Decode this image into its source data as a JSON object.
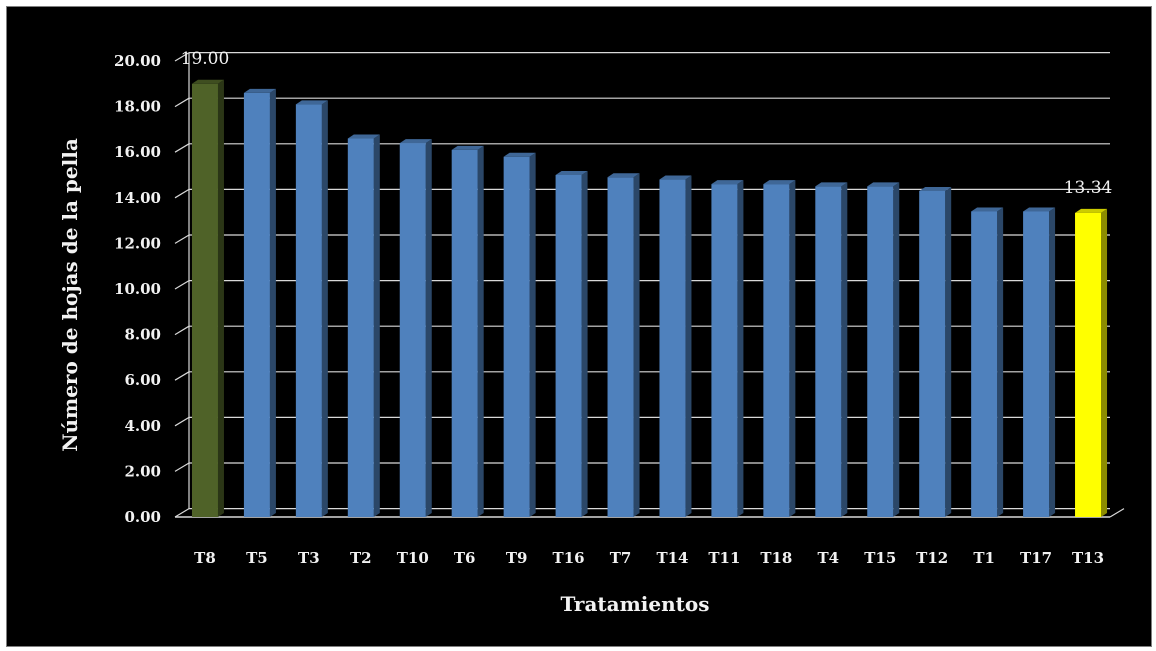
{
  "chart_data": {
    "type": "bar",
    "title": "",
    "xlabel": "Tratamientos",
    "ylabel": "Número de hojas de la pella",
    "ylim": [
      0,
      20
    ],
    "yticks": [
      "0.00",
      "2.00",
      "4.00",
      "6.00",
      "8.00",
      "10.00",
      "12.00",
      "14.00",
      "16.00",
      "18.00",
      "20.00"
    ],
    "grid": true,
    "categories": [
      "T8",
      "T5",
      "T3",
      "T2",
      "T10",
      "T6",
      "T9",
      "T16",
      "T7",
      "T14",
      "T11",
      "T18",
      "T4",
      "T15",
      "T12",
      "T1",
      "T17",
      "T13"
    ],
    "values": [
      19.0,
      18.6,
      18.1,
      16.6,
      16.4,
      16.1,
      15.8,
      15.0,
      14.9,
      14.8,
      14.6,
      14.6,
      14.5,
      14.5,
      14.3,
      13.4,
      13.4,
      13.34
    ],
    "data_labels": [
      {
        "category": "T8",
        "text": "19.00"
      },
      {
        "category": "T13",
        "text": "13.34"
      }
    ],
    "colors": {
      "default": "#4f81bd",
      "highest": "#4f6228",
      "lowest": "#ffff00",
      "background": "#000000",
      "grid": "#d9d9d9",
      "text": "#f2f2f2"
    }
  }
}
